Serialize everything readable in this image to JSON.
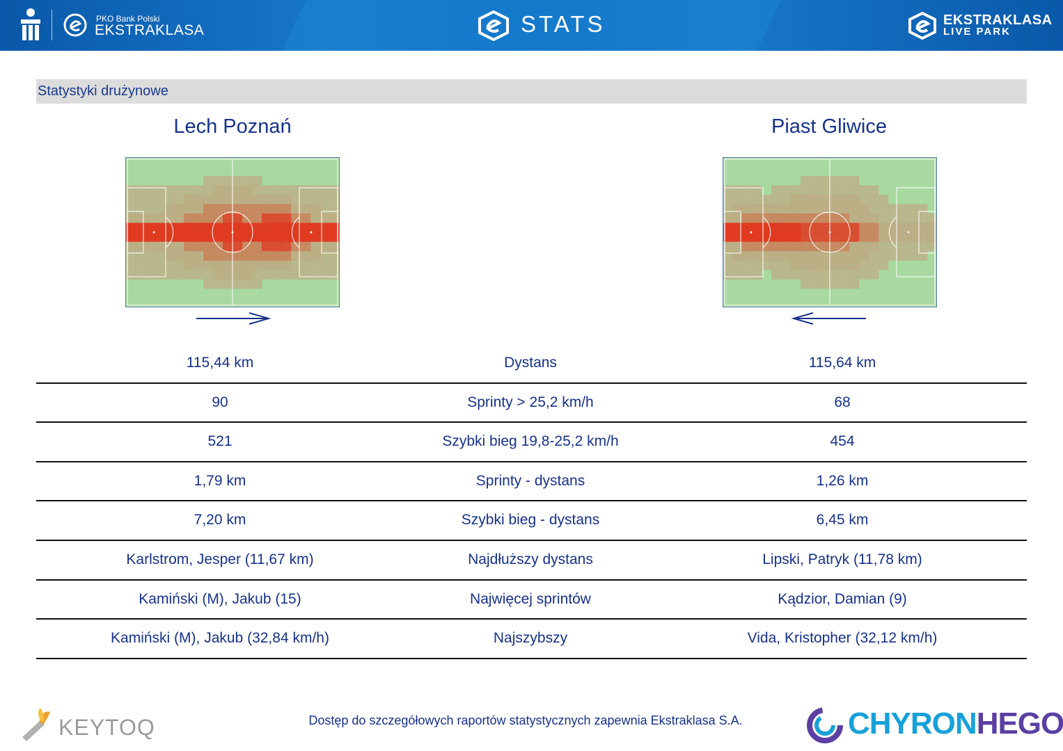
{
  "header": {
    "pko_small": "PKO Bank Polski",
    "pko_big": "EKSTRAKLASA",
    "title": "STATS",
    "livepark_top": "EKSTRAKLASA",
    "livepark_bottom": "LIVE PARK"
  },
  "section": {
    "title": "Statystyki drużynowe"
  },
  "teams": {
    "home": {
      "name": "Lech Poznań",
      "direction": "right"
    },
    "away": {
      "name": "Piast Gliwice",
      "direction": "left"
    }
  },
  "stats": [
    {
      "label": "Dystans",
      "home": "115,44 km",
      "away": "115,64 km"
    },
    {
      "label": "Sprinty > 25,2 km/h",
      "home": "90",
      "away": "68"
    },
    {
      "label": "Szybki bieg 19,8-25,2 km/h",
      "home": "521",
      "away": "454"
    },
    {
      "label": "Sprinty - dystans",
      "home": "1,79 km",
      "away": "1,26 km"
    },
    {
      "label": "Szybki bieg - dystans",
      "home": "7,20 km",
      "away": "6,45 km"
    },
    {
      "label": "Najdłuższy dystans",
      "home": "Karlstrom, Jesper (11,67 km)",
      "away": "Lipski, Patryk (11,78 km)"
    },
    {
      "label": "Najwięcej sprintów",
      "home": "Kamiński (M), Jakub (15)",
      "away": "Kądzior, Damian (9)"
    },
    {
      "label": "Najszybszy",
      "home": "Kamiński (M), Jakub (32,84 km/h)",
      "away": "Vida, Kristopher (32,12 km/h)"
    }
  ],
  "footer": {
    "note": "Dostęp do szczegółowych raportów statystycznych zapewnia Ekstraklasa S.A.",
    "keytoq": "KEYTOQ",
    "chyron_a": "CHYRON",
    "chyron_b": "HEGO"
  },
  "colors": {
    "header_blue": "#1479cb",
    "text_navy": "#16318a",
    "pitch_green": "#a8d9a0",
    "heat_red": "#e2331a"
  }
}
